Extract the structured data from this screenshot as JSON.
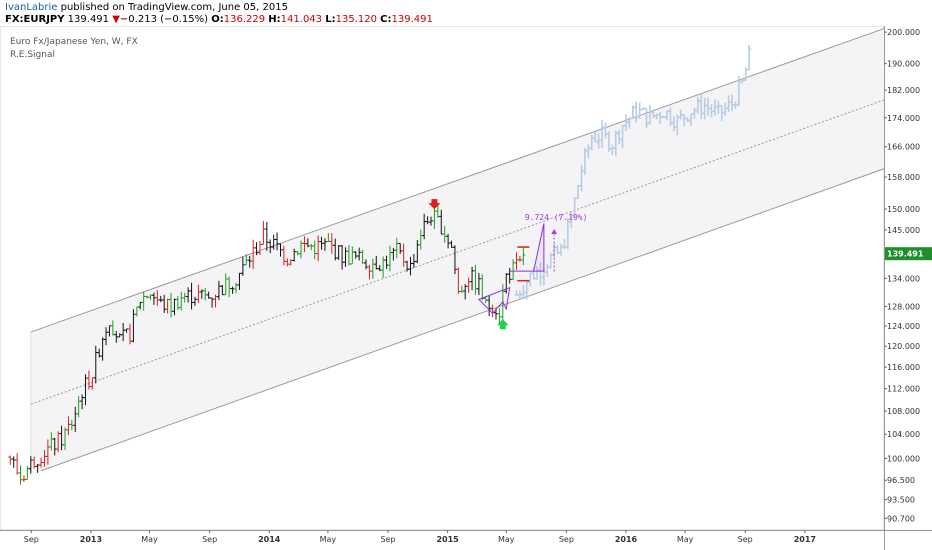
{
  "header": {
    "author": "IvanLabrie",
    "published": " published on TradingView.com, June 05, 2015",
    "symbol": "FX:EURJPY",
    "last": "139.491",
    "change_arrow": "▼",
    "change": "−0.213 (−0.15%)",
    "o_label": "O:",
    "o": "136.229",
    "h_label": "H:",
    "h": "141.043",
    "l_label": "L:",
    "l": "135.120",
    "c_label": "C:",
    "c": "139.491"
  },
  "legend": {
    "instrument": "Euro Fx/Japanese Yen, W, FX",
    "indicator": "R.E.Signal"
  },
  "colors": {
    "up": "#1d9e1d",
    "down": "#d9201b",
    "neutral": "#111111",
    "projection": "#b9cbe5",
    "pattern": "#8c2fd9",
    "price_badge": "#1f8f2b",
    "signal_down": "#e31c1c",
    "signal_up": "#22d14b",
    "channel": "#999999"
  },
  "chart_data": {
    "type": "ohlc",
    "title": "Euro Fx/Japanese Yen, W, FX",
    "y_scale": "log",
    "y_ticks": [
      "200.000",
      "190.000",
      "182.000",
      "174.000",
      "166.000",
      "158.000",
      "150.000",
      "145.000",
      "139.491",
      "134.000",
      "128.000",
      "124.000",
      "120.000",
      "116.000",
      "112.000",
      "108.000",
      "104.000",
      "100.000",
      "96.500",
      "93.500",
      "90.700"
    ],
    "y_range": [
      89.0,
      202.0
    ],
    "x_ticks": [
      {
        "label": "Sep",
        "date": "2012-09-01",
        "bold": false
      },
      {
        "label": "2013",
        "date": "2013-01-01",
        "bold": true
      },
      {
        "label": "May",
        "date": "2013-05-01",
        "bold": false
      },
      {
        "label": "Sep",
        "date": "2013-09-01",
        "bold": false
      },
      {
        "label": "2014",
        "date": "2014-01-01",
        "bold": true
      },
      {
        "label": "May",
        "date": "2014-05-01",
        "bold": false
      },
      {
        "label": "Sep",
        "date": "2014-09-01",
        "bold": false
      },
      {
        "label": "2015",
        "date": "2015-01-01",
        "bold": true
      },
      {
        "label": "May",
        "date": "2015-05-01",
        "bold": false
      },
      {
        "label": "Sep",
        "date": "2015-09-01",
        "bold": false
      },
      {
        "label": "2016",
        "date": "2016-01-01",
        "bold": true
      },
      {
        "label": "May",
        "date": "2016-05-01",
        "bold": false
      },
      {
        "label": "Sep",
        "date": "2016-09-01",
        "bold": false
      },
      {
        "label": "2017",
        "date": "2017-01-01",
        "bold": true
      }
    ],
    "last_price": "139.491",
    "price_path": [
      [
        "2012-07-20",
        100.2
      ],
      [
        "2012-08-10",
        96.8
      ],
      [
        "2012-09-07",
        99.8
      ],
      [
        "2012-10-05",
        101.5
      ],
      [
        "2012-11-02",
        103.2
      ],
      [
        "2012-11-23",
        106.0
      ],
      [
        "2012-12-14",
        111.5
      ],
      [
        "2013-01-04",
        114.8
      ],
      [
        "2013-01-25",
        122.0
      ],
      [
        "2013-02-08",
        125.5
      ],
      [
        "2013-03-01",
        121.0
      ],
      [
        "2013-03-22",
        122.5
      ],
      [
        "2013-04-12",
        129.5
      ],
      [
        "2013-05-03",
        131.0
      ],
      [
        "2013-05-24",
        128.5
      ],
      [
        "2013-06-14",
        128.0
      ],
      [
        "2013-07-05",
        130.0
      ],
      [
        "2013-08-02",
        130.5
      ],
      [
        "2013-08-30",
        130.0
      ],
      [
        "2013-09-27",
        132.0
      ],
      [
        "2013-10-25",
        134.0
      ],
      [
        "2013-11-22",
        138.5
      ],
      [
        "2013-12-20",
        143.5
      ],
      [
        "2014-01-10",
        141.5
      ],
      [
        "2014-02-07",
        138.5
      ],
      [
        "2014-03-07",
        141.5
      ],
      [
        "2014-04-04",
        141.0
      ],
      [
        "2014-05-02",
        141.5
      ],
      [
        "2014-05-30",
        139.0
      ],
      [
        "2014-06-27",
        138.5
      ],
      [
        "2014-07-25",
        137.5
      ],
      [
        "2014-08-22",
        137.5
      ],
      [
        "2014-09-19",
        140.0
      ],
      [
        "2014-10-17",
        136.5
      ],
      [
        "2014-11-07",
        144.5
      ],
      [
        "2014-11-28",
        148.5
      ],
      [
        "2014-12-19",
        146.0
      ],
      [
        "2015-01-09",
        141.0
      ],
      [
        "2015-01-23",
        131.0
      ],
      [
        "2015-02-13",
        134.5
      ],
      [
        "2015-03-06",
        132.5
      ],
      [
        "2015-03-20",
        128.0
      ],
      [
        "2015-04-03",
        128.5
      ],
      [
        "2015-04-17",
        127.0
      ],
      [
        "2015-05-01",
        134.5
      ],
      [
        "2015-05-15",
        136.0
      ],
      [
        "2015-05-29",
        137.0
      ],
      [
        "2015-06-05",
        139.5
      ]
    ],
    "projection_path": [
      [
        "2015-05-22",
        130.5
      ],
      [
        "2015-06-19",
        134.5
      ],
      [
        "2015-07-10",
        136.0
      ],
      [
        "2015-07-31",
        138.5
      ],
      [
        "2015-08-21",
        140.0
      ],
      [
        "2015-09-11",
        148.0
      ],
      [
        "2015-10-02",
        160.0
      ],
      [
        "2015-10-23",
        168.5
      ],
      [
        "2015-11-13",
        169.0
      ],
      [
        "2015-12-04",
        167.0
      ],
      [
        "2015-12-25",
        172.0
      ],
      [
        "2016-01-22",
        176.0
      ],
      [
        "2016-02-19",
        174.0
      ],
      [
        "2016-03-18",
        176.0
      ],
      [
        "2016-04-15",
        173.0
      ],
      [
        "2016-05-13",
        176.0
      ],
      [
        "2016-06-10",
        177.5
      ],
      [
        "2016-07-08",
        175.0
      ],
      [
        "2016-08-05",
        178.0
      ],
      [
        "2016-08-26",
        184.0
      ],
      [
        "2016-09-09",
        192.0
      ]
    ],
    "channel": {
      "upper": [
        [
          "2012-08-31",
          122.8
        ],
        [
          "2017-02-17",
          196.0
        ]
      ],
      "middle": [
        [
          "2012-08-31",
          109.2
        ],
        [
          "2017-02-17",
          174.5
        ]
      ],
      "lower": [
        [
          "2012-09-21",
          98.0
        ],
        [
          "2017-02-17",
          156.0
        ]
      ]
    },
    "annotation": {
      "text": "9.724 (7.19%)",
      "x": "2015-08-07",
      "from": 135.5,
      "to": 145.2
    },
    "signals": [
      {
        "type": "sell",
        "x": "2014-12-05",
        "y": 149.5
      },
      {
        "type": "buy",
        "x": "2015-04-24",
        "y": 125.8
      }
    ],
    "patterns": [
      {
        "points": [
          [
            "2015-03-06",
            129.5
          ],
          [
            "2015-04-03",
            126.6
          ],
          [
            "2015-04-24",
            129.0
          ],
          [
            "2015-05-01",
            127.5
          ],
          [
            "2015-05-08",
            132.0
          ]
        ]
      },
      {
        "points": [
          [
            "2015-05-08",
            135.6
          ],
          [
            "2015-06-26",
            135.6
          ],
          [
            "2015-07-17",
            146.5
          ],
          [
            "2015-07-17",
            135.6
          ]
        ]
      }
    ]
  }
}
